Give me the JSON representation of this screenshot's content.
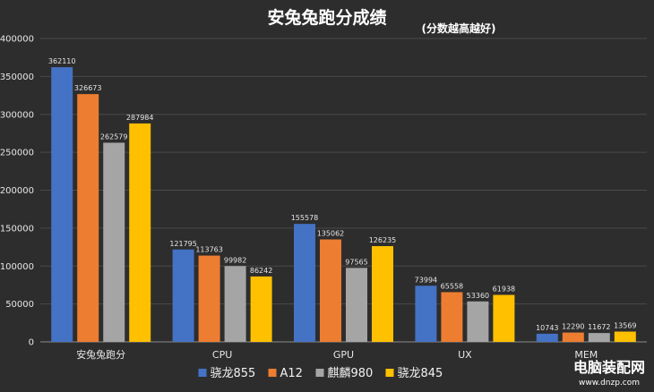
{
  "chart_data": {
    "type": "bar",
    "title": "安兔兔跑分成绩",
    "subtitle": "(分数越高越好)",
    "categories": [
      "安兔兔跑分",
      "CPU",
      "GPU",
      "UX",
      "MEM"
    ],
    "series": [
      {
        "name": "骁龙855",
        "color": "#4472c4",
        "values": [
          362110,
          121795,
          155578,
          73994,
          10743
        ]
      },
      {
        "name": "A12",
        "color": "#ed7d31",
        "values": [
          326673,
          113763,
          135062,
          65558,
          12290
        ]
      },
      {
        "name": "麒麟980",
        "color": "#a5a5a5",
        "values": [
          262579,
          99982,
          97565,
          53360,
          11672
        ]
      },
      {
        "name": "骁龙845",
        "color": "#ffc000",
        "values": [
          287984,
          86242,
          126235,
          61938,
          13569
        ]
      }
    ],
    "ylim": [
      0,
      400000
    ],
    "yticks": [
      0,
      50000,
      100000,
      150000,
      200000,
      250000,
      300000,
      350000,
      400000
    ],
    "grid": true,
    "legend": "bottom-center"
  },
  "watermark": {
    "name": "电脑装配网",
    "url": "www.dnzp.com"
  }
}
